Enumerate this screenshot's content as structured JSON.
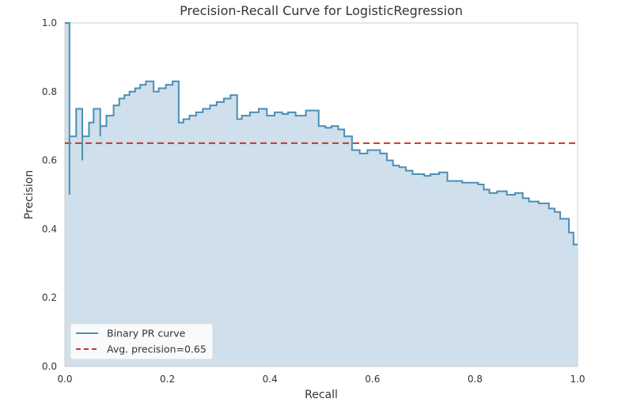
{
  "chart_data": {
    "type": "line",
    "title": "Precision-Recall Curve for LogisticRegression",
    "xlabel": "Recall",
    "ylabel": "Precision",
    "xlim": [
      0.0,
      1.0
    ],
    "ylim": [
      0.0,
      1.0
    ],
    "xticks": [
      "0.0",
      "0.2",
      "0.4",
      "0.6",
      "0.8",
      "1.0"
    ],
    "yticks": [
      "0.0",
      "0.2",
      "0.4",
      "0.6",
      "0.8",
      "1.0"
    ],
    "grid": false,
    "legend_position": "lower-left",
    "colors": {
      "curve": "#4a8fb5",
      "fill": "#cfdfeb",
      "average": "#c0392b",
      "axes_bg": "#ffffff",
      "frame": "#cccccc"
    },
    "series": [
      {
        "name": "Binary PR curve",
        "kind": "step",
        "points": [
          [
            0.0,
            1.0
          ],
          [
            0.009,
            1.0
          ],
          [
            0.009,
            0.5
          ],
          [
            0.009,
            0.67
          ],
          [
            0.022,
            0.67
          ],
          [
            0.022,
            0.75
          ],
          [
            0.034,
            0.75
          ],
          [
            0.034,
            0.6
          ],
          [
            0.034,
            0.67
          ],
          [
            0.047,
            0.67
          ],
          [
            0.047,
            0.71
          ],
          [
            0.056,
            0.71
          ],
          [
            0.056,
            0.75
          ],
          [
            0.069,
            0.75
          ],
          [
            0.069,
            0.67
          ],
          [
            0.069,
            0.7
          ],
          [
            0.081,
            0.7
          ],
          [
            0.081,
            0.73
          ],
          [
            0.095,
            0.73
          ],
          [
            0.095,
            0.76
          ],
          [
            0.106,
            0.76
          ],
          [
            0.106,
            0.78
          ],
          [
            0.116,
            0.78
          ],
          [
            0.116,
            0.79
          ],
          [
            0.126,
            0.79
          ],
          [
            0.126,
            0.8
          ],
          [
            0.137,
            0.8
          ],
          [
            0.137,
            0.81
          ],
          [
            0.147,
            0.81
          ],
          [
            0.147,
            0.82
          ],
          [
            0.158,
            0.82
          ],
          [
            0.158,
            0.83
          ],
          [
            0.173,
            0.83
          ],
          [
            0.173,
            0.8
          ],
          [
            0.183,
            0.8
          ],
          [
            0.183,
            0.81
          ],
          [
            0.197,
            0.81
          ],
          [
            0.197,
            0.82
          ],
          [
            0.21,
            0.82
          ],
          [
            0.21,
            0.83
          ],
          [
            0.222,
            0.83
          ],
          [
            0.222,
            0.71
          ],
          [
            0.231,
            0.71
          ],
          [
            0.231,
            0.72
          ],
          [
            0.243,
            0.72
          ],
          [
            0.243,
            0.73
          ],
          [
            0.256,
            0.73
          ],
          [
            0.256,
            0.74
          ],
          [
            0.269,
            0.74
          ],
          [
            0.269,
            0.75
          ],
          [
            0.283,
            0.75
          ],
          [
            0.283,
            0.76
          ],
          [
            0.296,
            0.76
          ],
          [
            0.296,
            0.77
          ],
          [
            0.31,
            0.77
          ],
          [
            0.31,
            0.78
          ],
          [
            0.323,
            0.78
          ],
          [
            0.323,
            0.79
          ],
          [
            0.336,
            0.79
          ],
          [
            0.336,
            0.72
          ],
          [
            0.345,
            0.72
          ],
          [
            0.345,
            0.73
          ],
          [
            0.361,
            0.73
          ],
          [
            0.361,
            0.74
          ],
          [
            0.378,
            0.74
          ],
          [
            0.378,
            0.75
          ],
          [
            0.394,
            0.75
          ],
          [
            0.394,
            0.73
          ],
          [
            0.409,
            0.73
          ],
          [
            0.409,
            0.74
          ],
          [
            0.424,
            0.74
          ],
          [
            0.424,
            0.735
          ],
          [
            0.435,
            0.735
          ],
          [
            0.435,
            0.74
          ],
          [
            0.45,
            0.74
          ],
          [
            0.45,
            0.73
          ],
          [
            0.47,
            0.73
          ],
          [
            0.47,
            0.745
          ],
          [
            0.495,
            0.745
          ],
          [
            0.495,
            0.7
          ],
          [
            0.508,
            0.7
          ],
          [
            0.508,
            0.695
          ],
          [
            0.52,
            0.695
          ],
          [
            0.52,
            0.7
          ],
          [
            0.533,
            0.7
          ],
          [
            0.533,
            0.69
          ],
          [
            0.545,
            0.69
          ],
          [
            0.545,
            0.67
          ],
          [
            0.56,
            0.67
          ],
          [
            0.56,
            0.63
          ],
          [
            0.575,
            0.63
          ],
          [
            0.575,
            0.62
          ],
          [
            0.59,
            0.62
          ],
          [
            0.59,
            0.63
          ],
          [
            0.615,
            0.63
          ],
          [
            0.615,
            0.62
          ],
          [
            0.628,
            0.62
          ],
          [
            0.628,
            0.6
          ],
          [
            0.64,
            0.6
          ],
          [
            0.64,
            0.585
          ],
          [
            0.652,
            0.585
          ],
          [
            0.652,
            0.58
          ],
          [
            0.665,
            0.58
          ],
          [
            0.665,
            0.57
          ],
          [
            0.678,
            0.57
          ],
          [
            0.678,
            0.56
          ],
          [
            0.701,
            0.56
          ],
          [
            0.701,
            0.555
          ],
          [
            0.713,
            0.555
          ],
          [
            0.713,
            0.56
          ],
          [
            0.73,
            0.56
          ],
          [
            0.73,
            0.565
          ],
          [
            0.746,
            0.565
          ],
          [
            0.746,
            0.54
          ],
          [
            0.775,
            0.54
          ],
          [
            0.775,
            0.535
          ],
          [
            0.806,
            0.535
          ],
          [
            0.806,
            0.53
          ],
          [
            0.817,
            0.53
          ],
          [
            0.817,
            0.515
          ],
          [
            0.828,
            0.515
          ],
          [
            0.828,
            0.505
          ],
          [
            0.843,
            0.505
          ],
          [
            0.843,
            0.51
          ],
          [
            0.862,
            0.51
          ],
          [
            0.862,
            0.5
          ],
          [
            0.878,
            0.5
          ],
          [
            0.878,
            0.505
          ],
          [
            0.893,
            0.505
          ],
          [
            0.893,
            0.49
          ],
          [
            0.905,
            0.49
          ],
          [
            0.905,
            0.48
          ],
          [
            0.924,
            0.48
          ],
          [
            0.924,
            0.475
          ],
          [
            0.944,
            0.475
          ],
          [
            0.944,
            0.46
          ],
          [
            0.955,
            0.46
          ],
          [
            0.955,
            0.45
          ],
          [
            0.966,
            0.45
          ],
          [
            0.966,
            0.43
          ],
          [
            0.983,
            0.43
          ],
          [
            0.983,
            0.39
          ],
          [
            0.992,
            0.39
          ],
          [
            0.992,
            0.355
          ],
          [
            1.0,
            0.355
          ]
        ]
      },
      {
        "name": "Avg. precision=0.65",
        "kind": "hline",
        "value": 0.65
      }
    ]
  }
}
